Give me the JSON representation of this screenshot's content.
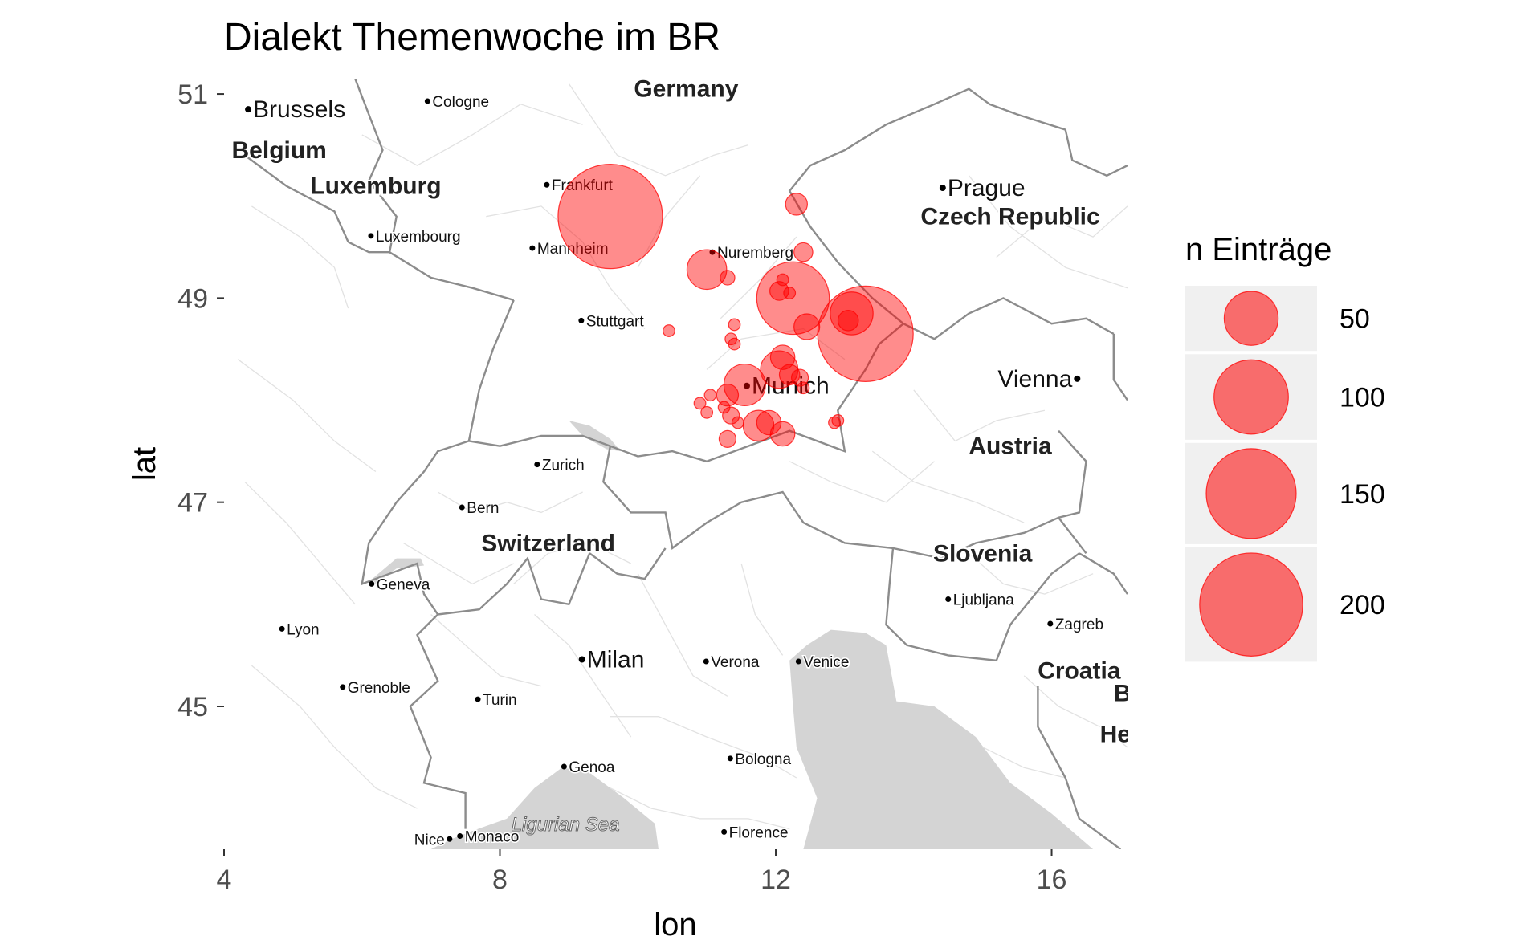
{
  "chart_data": {
    "type": "scatter",
    "subtype": "bubble-map",
    "title": "Dialekt Themenwoche im BR",
    "xlabel": "lon",
    "ylabel": "lat",
    "xlim": [
      4,
      17.1
    ],
    "ylim": [
      43.6,
      51.15
    ],
    "x_ticks": [
      {
        "value": 4,
        "label": "4"
      },
      {
        "value": 8,
        "label": "8"
      },
      {
        "value": 12,
        "label": "12"
      },
      {
        "value": 16,
        "label": "16"
      }
    ],
    "y_ticks": [
      {
        "value": 45,
        "label": "45"
      },
      {
        "value": 47,
        "label": "47"
      },
      {
        "value": 49,
        "label": "49"
      },
      {
        "value": 51,
        "label": "51"
      }
    ],
    "point_color": "#ff0000",
    "point_fill_opacity": 0.45,
    "size_legend": {
      "title": "n Einträge",
      "entries": [
        {
          "value": 50,
          "label": "50"
        },
        {
          "value": 100,
          "label": "100"
        },
        {
          "value": 150,
          "label": "150"
        },
        {
          "value": 200,
          "label": "200"
        }
      ]
    },
    "points": [
      {
        "lon": 9.6,
        "lat": 49.8,
        "n": 205
      },
      {
        "lon": 13.3,
        "lat": 48.65,
        "n": 170
      },
      {
        "lon": 12.25,
        "lat": 49.0,
        "n": 95
      },
      {
        "lon": 13.1,
        "lat": 48.85,
        "n": 30
      },
      {
        "lon": 13.05,
        "lat": 48.78,
        "n": 5
      },
      {
        "lon": 11.0,
        "lat": 49.28,
        "n": 25
      },
      {
        "lon": 11.3,
        "lat": 49.2,
        "n": 2
      },
      {
        "lon": 12.3,
        "lat": 49.92,
        "n": 6
      },
      {
        "lon": 12.4,
        "lat": 49.45,
        "n": 4
      },
      {
        "lon": 12.1,
        "lat": 49.18,
        "n": 1
      },
      {
        "lon": 12.05,
        "lat": 49.07,
        "n": 4
      },
      {
        "lon": 12.2,
        "lat": 49.05,
        "n": 1
      },
      {
        "lon": 12.45,
        "lat": 48.72,
        "n": 9
      },
      {
        "lon": 10.45,
        "lat": 48.68,
        "n": 1
      },
      {
        "lon": 11.4,
        "lat": 48.74,
        "n": 1
      },
      {
        "lon": 11.35,
        "lat": 48.6,
        "n": 1
      },
      {
        "lon": 11.4,
        "lat": 48.55,
        "n": 1
      },
      {
        "lon": 12.1,
        "lat": 48.42,
        "n": 8
      },
      {
        "lon": 12.05,
        "lat": 48.3,
        "n": 22
      },
      {
        "lon": 12.2,
        "lat": 48.25,
        "n": 5
      },
      {
        "lon": 12.35,
        "lat": 48.22,
        "n": 3
      },
      {
        "lon": 11.55,
        "lat": 48.15,
        "n": 28
      },
      {
        "lon": 11.3,
        "lat": 48.05,
        "n": 6
      },
      {
        "lon": 11.25,
        "lat": 47.93,
        "n": 1
      },
      {
        "lon": 11.35,
        "lat": 47.85,
        "n": 3
      },
      {
        "lon": 10.9,
        "lat": 47.97,
        "n": 1
      },
      {
        "lon": 11.05,
        "lat": 48.05,
        "n": 1
      },
      {
        "lon": 11.0,
        "lat": 47.88,
        "n": 1
      },
      {
        "lon": 11.45,
        "lat": 47.78,
        "n": 1
      },
      {
        "lon": 11.75,
        "lat": 47.75,
        "n": 14
      },
      {
        "lon": 11.9,
        "lat": 47.78,
        "n": 8
      },
      {
        "lon": 12.1,
        "lat": 47.67,
        "n": 8
      },
      {
        "lon": 11.3,
        "lat": 47.62,
        "n": 3
      },
      {
        "lon": 12.4,
        "lat": 48.12,
        "n": 1
      },
      {
        "lon": 12.9,
        "lat": 47.8,
        "n": 1
      },
      {
        "lon": 12.85,
        "lat": 47.78,
        "n": 1
      }
    ]
  },
  "basemap": {
    "countries": [
      {
        "name": "Germany",
        "lon": 10.7,
        "lat": 51.05
      },
      {
        "name": "Belgium",
        "lon": 4.8,
        "lat": 50.45
      },
      {
        "name": "Luxemburg",
        "lon": 6.2,
        "lat": 50.1
      },
      {
        "name": "Czech Republic",
        "lon": 15.4,
        "lat": 49.8
      },
      {
        "name": "Austria",
        "lon": 15.4,
        "lat": 47.55
      },
      {
        "name": "Switzerland",
        "lon": 8.7,
        "lat": 46.6
      },
      {
        "name": "Slovenia",
        "lon": 15.0,
        "lat": 46.5
      },
      {
        "name": "Croatia",
        "lon": 16.4,
        "lat": 45.35
      }
    ],
    "cities_large": [
      {
        "name": "Brussels",
        "lon": 4.35,
        "lat": 50.85,
        "anchor": "start"
      },
      {
        "name": "Prague",
        "lon": 14.42,
        "lat": 50.08,
        "anchor": "start"
      },
      {
        "name": "Munich",
        "lon": 11.58,
        "lat": 48.14,
        "anchor": "start"
      },
      {
        "name": "Vienna",
        "lon": 16.37,
        "lat": 48.21,
        "anchor": "end"
      },
      {
        "name": "Milan",
        "lon": 9.19,
        "lat": 45.46,
        "anchor": "start"
      }
    ],
    "cities_small": [
      {
        "name": "Cologne",
        "lon": 6.95,
        "lat": 50.93,
        "anchor": "start"
      },
      {
        "name": "Frankfurt",
        "lon": 8.68,
        "lat": 50.11,
        "anchor": "start"
      },
      {
        "name": "Luxembourg",
        "lon": 6.13,
        "lat": 49.61,
        "anchor": "start"
      },
      {
        "name": "Mannheim",
        "lon": 8.47,
        "lat": 49.49,
        "anchor": "start"
      },
      {
        "name": "Nuremberg",
        "lon": 11.08,
        "lat": 49.45,
        "anchor": "start"
      },
      {
        "name": "Stuttgart",
        "lon": 9.18,
        "lat": 48.78,
        "anchor": "start"
      },
      {
        "name": "Zurich",
        "lon": 8.54,
        "lat": 47.37,
        "anchor": "start"
      },
      {
        "name": "Bern",
        "lon": 7.45,
        "lat": 46.95,
        "anchor": "start"
      },
      {
        "name": "Geneva",
        "lon": 6.14,
        "lat": 46.2,
        "anchor": "start"
      },
      {
        "name": "Lyon",
        "lon": 4.84,
        "lat": 45.76,
        "anchor": "start"
      },
      {
        "name": "Grenoble",
        "lon": 5.72,
        "lat": 45.19,
        "anchor": "start"
      },
      {
        "name": "Turin",
        "lon": 7.68,
        "lat": 45.07,
        "anchor": "start"
      },
      {
        "name": "Verona",
        "lon": 10.99,
        "lat": 45.44,
        "anchor": "start"
      },
      {
        "name": "Venice",
        "lon": 12.33,
        "lat": 45.44,
        "anchor": "start"
      },
      {
        "name": "Ljubljana",
        "lon": 14.5,
        "lat": 46.05,
        "anchor": "start"
      },
      {
        "name": "Zagreb",
        "lon": 15.98,
        "lat": 45.81,
        "anchor": "start"
      },
      {
        "name": "Genoa",
        "lon": 8.93,
        "lat": 44.41,
        "anchor": "start"
      },
      {
        "name": "Bologna",
        "lon": 11.34,
        "lat": 44.49,
        "anchor": "start"
      },
      {
        "name": "Florence",
        "lon": 11.25,
        "lat": 43.77,
        "anchor": "start"
      },
      {
        "name": "Nice",
        "lon": 7.27,
        "lat": 43.7,
        "anchor": "end"
      },
      {
        "name": "Monaco",
        "lon": 7.42,
        "lat": 43.73,
        "anchor": "start"
      }
    ],
    "water_labels": [
      {
        "name": "Ligurian Sea",
        "lon": 8.95,
        "lat": 43.78
      }
    ],
    "partial_labels": [
      {
        "text": "B",
        "lon": 16.9,
        "lat": 45.05
      },
      {
        "text": "He",
        "lon": 16.7,
        "lat": 44.65
      }
    ]
  }
}
